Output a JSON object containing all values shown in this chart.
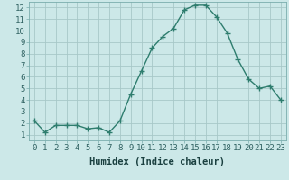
{
  "x": [
    0,
    1,
    2,
    3,
    4,
    5,
    6,
    7,
    8,
    9,
    10,
    11,
    12,
    13,
    14,
    15,
    16,
    17,
    18,
    19,
    20,
    21,
    22,
    23
  ],
  "y": [
    2.2,
    1.2,
    1.8,
    1.8,
    1.8,
    1.5,
    1.6,
    1.2,
    2.2,
    4.5,
    6.5,
    8.5,
    9.5,
    10.2,
    11.8,
    12.2,
    12.2,
    11.2,
    9.8,
    7.5,
    5.8,
    5.0,
    5.2,
    4.0
  ],
  "line_color": "#2e7d6e",
  "marker": "+",
  "bg_color": "#cce8e8",
  "grid_color": "#a8c8c8",
  "xlabel": "Humidex (Indice chaleur)",
  "ylim": [
    0.5,
    12.5
  ],
  "xlim": [
    -0.5,
    23.5
  ],
  "yticks": [
    1,
    2,
    3,
    4,
    5,
    6,
    7,
    8,
    9,
    10,
    11,
    12
  ],
  "xticks": [
    0,
    1,
    2,
    3,
    4,
    5,
    6,
    7,
    8,
    9,
    10,
    11,
    12,
    13,
    14,
    15,
    16,
    17,
    18,
    19,
    20,
    21,
    22,
    23
  ],
  "tick_label_fontsize": 6.5,
  "xlabel_fontsize": 7.5,
  "line_width": 1.0,
  "marker_size": 4
}
